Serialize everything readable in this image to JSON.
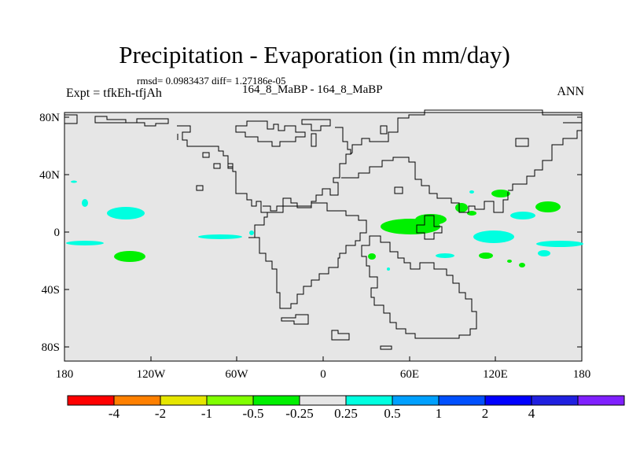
{
  "title": "Precipitation - Evaporation (in mm/day)",
  "stats": "rmsd= 0.0983437 diff= 1.27186e-05",
  "expt": "Expt = tfkEh-tfjAh",
  "runs": "164_8_MaBP - 164_8_MaBP",
  "season": "ANN",
  "map": {
    "lat_ticks": [
      "80N",
      "40N",
      "0",
      "40S",
      "80S"
    ],
    "lon_ticks": [
      "180",
      "120W",
      "60W",
      "0",
      "60E",
      "120E",
      "180"
    ],
    "background_color": "#e6e6e6"
  },
  "colorbar": {
    "colors": [
      "#ff0000",
      "#ff8000",
      "#e6e600",
      "#80ff00",
      "#00f000",
      "#e6e6e6",
      "#00ffe0",
      "#00a0ff",
      "#0050ff",
      "#0000ff",
      "#2020e0",
      "#8020ff"
    ],
    "labels": [
      "-4",
      "-2",
      "-1",
      "-0.5",
      "-0.25",
      "0.25",
      "0.5",
      "1",
      "2",
      "4"
    ]
  }
}
